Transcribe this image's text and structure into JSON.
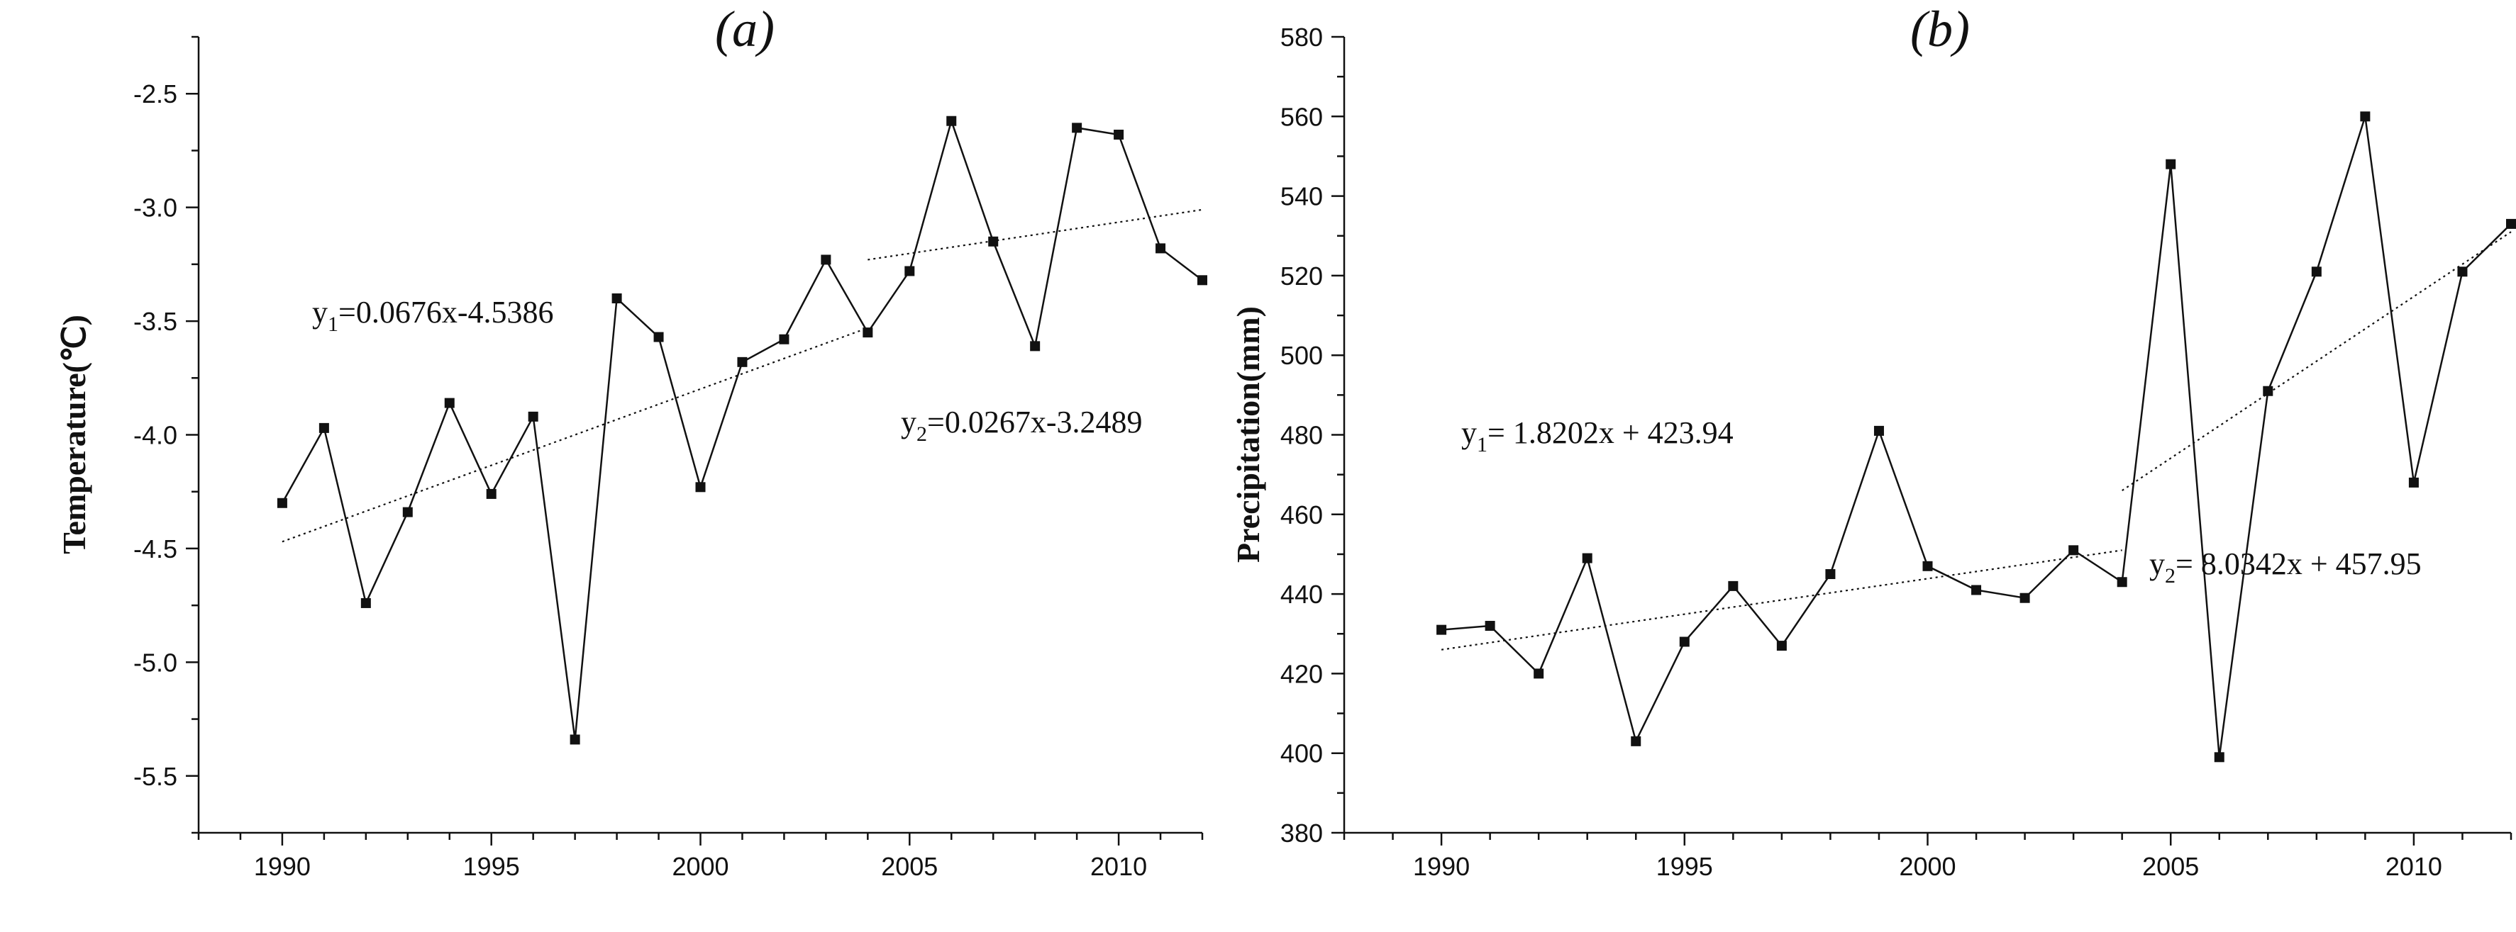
{
  "chart_data": [
    {
      "type": "line",
      "title": "(a)",
      "xlabel": "",
      "ylabel": "Temperature(℃)",
      "xlim": [
        1988,
        2012
      ],
      "ylim": [
        -5.75,
        -2.25
      ],
      "x_ticks": [
        1990,
        1995,
        2000,
        2005,
        2010
      ],
      "y_ticks": [
        -5.5,
        -5.0,
        -4.5,
        -4.0,
        -3.5,
        -3.0,
        -2.5
      ],
      "y_tick_labels": [
        "-5.5",
        "-5.0",
        "-4.5",
        "-4.0",
        "-3.5",
        "-3.0",
        "-2.5"
      ],
      "grid": false,
      "x": [
        1990,
        1991,
        1992,
        1993,
        1994,
        1995,
        1996,
        1997,
        1998,
        1999,
        2000,
        2001,
        2002,
        2003,
        2004,
        2005,
        2006,
        2007,
        2008,
        2009,
        2010,
        2011,
        2012
      ],
      "values": [
        -4.3,
        -3.97,
        -4.74,
        -4.34,
        -3.86,
        -4.26,
        -3.92,
        -5.34,
        -3.4,
        -3.57,
        -4.23,
        -3.68,
        -3.58,
        -3.23,
        -3.55,
        -3.28,
        -2.62,
        -3.15,
        -3.61,
        -2.65,
        -2.68,
        -3.18,
        -3.32
      ],
      "trends": [
        {
          "x_range": [
            1990,
            2004
          ],
          "y_range": [
            -4.47,
            -3.53
          ],
          "label_main": "y",
          "label_sub": "1",
          "label_rest": "=0.0676x-4.5386"
        },
        {
          "x_range": [
            2004,
            2012
          ],
          "y_range": [
            -3.23,
            -3.01
          ],
          "label_main": "y",
          "label_sub": "2",
          "label_rest": "=0.0267x-3.2489"
        }
      ]
    },
    {
      "type": "line",
      "title": "(b)",
      "xlabel": "",
      "ylabel": "Precipitation(mm)",
      "xlim": [
        1988,
        2012
      ],
      "ylim": [
        380,
        580
      ],
      "x_ticks": [
        1990,
        1995,
        2000,
        2005,
        2010
      ],
      "y_ticks": [
        380,
        400,
        420,
        440,
        460,
        480,
        500,
        520,
        540,
        560,
        580
      ],
      "y_tick_labels": [
        "380",
        "400",
        "420",
        "440",
        "460",
        "480",
        "500",
        "520",
        "540",
        "560",
        "580"
      ],
      "grid": false,
      "x": [
        1990,
        1991,
        1992,
        1993,
        1994,
        1995,
        1996,
        1997,
        1998,
        1999,
        2000,
        2001,
        2002,
        2003,
        2004,
        2005,
        2006,
        2007,
        2008,
        2009,
        2010,
        2011,
        2012
      ],
      "values": [
        431,
        432,
        420,
        449,
        403,
        428,
        442,
        427,
        445,
        481,
        447,
        441,
        439,
        451,
        443,
        548,
        399,
        491,
        521,
        560,
        468,
        521,
        533
      ],
      "trends": [
        {
          "x_range": [
            1990,
            2004
          ],
          "y_range": [
            426,
            451
          ],
          "label_main": "y",
          "label_sub": "1",
          "label_rest": "= 1.8202x + 423.94"
        },
        {
          "x_range": [
            2004,
            2012
          ],
          "y_range": [
            466,
            531
          ],
          "label_main": "y",
          "label_sub": "2",
          "label_rest": "= 8.0342x + 457.95"
        }
      ]
    }
  ]
}
